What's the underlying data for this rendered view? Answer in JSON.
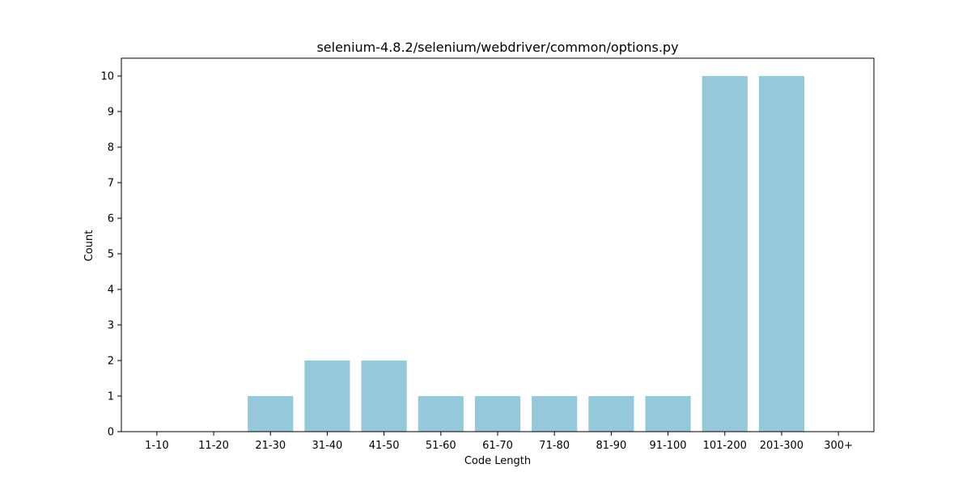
{
  "chart_data": {
    "type": "bar",
    "title": "selenium-4.8.2/selenium/webdriver/common/options.py",
    "xlabel": "Code Length",
    "ylabel": "Count",
    "categories": [
      "1-10",
      "11-20",
      "21-30",
      "31-40",
      "41-50",
      "51-60",
      "61-70",
      "71-80",
      "81-90",
      "91-100",
      "101-200",
      "201-300",
      "300+"
    ],
    "values": [
      0,
      0,
      1,
      2,
      2,
      1,
      1,
      1,
      1,
      1,
      10,
      10,
      0
    ],
    "yticks": [
      0,
      1,
      2,
      3,
      4,
      5,
      6,
      7,
      8,
      9,
      10
    ],
    "ylim": [
      0,
      10.5
    ],
    "bar_color": "#96c8dc",
    "grid": false,
    "legend": "none"
  }
}
